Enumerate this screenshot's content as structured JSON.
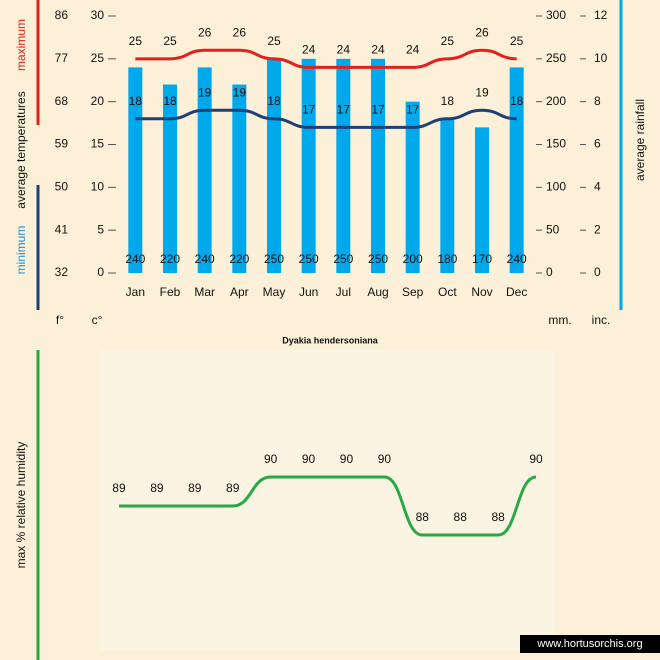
{
  "chart_data": [
    {
      "type": "combo",
      "title": "Dyakia hendersoniana",
      "ylabel_max": "maximum",
      "ylabel": "average temperatures",
      "ylabel_min": "minimum",
      "y2label": "average rainfall",
      "yunit_f": "f°",
      "yunit_c": "c°",
      "y2unit": "mm.",
      "y3unit": "inc.",
      "categories": [
        "Jan",
        "Feb",
        "Mar",
        "Apr",
        "May",
        "Jun",
        "Jul",
        "Aug",
        "Sep",
        "Oct",
        "Nov",
        "Dec"
      ],
      "ylim": [
        0,
        30
      ],
      "yticks": [
        0,
        5,
        10,
        15,
        20,
        25,
        30
      ],
      "yticks_f": [
        {
          "value": 0,
          "label": "32"
        },
        {
          "value": 5,
          "label": "41"
        },
        {
          "value": 10,
          "label": "50"
        },
        {
          "value": 15,
          "label": "59"
        },
        {
          "value": 20,
          "label": "68"
        },
        {
          "value": 25,
          "label": "77"
        },
        {
          "value": 30,
          "label": "86"
        }
      ],
      "y2lim": [
        0,
        300
      ],
      "y2ticks": [
        0,
        50,
        100,
        150,
        200,
        250,
        300
      ],
      "y3ticks": [
        {
          "value": 0,
          "label": "0"
        },
        {
          "value": 50,
          "label": "2"
        },
        {
          "value": 100,
          "label": "4"
        },
        {
          "value": 150,
          "label": "6"
        },
        {
          "value": 200,
          "label": "8"
        },
        {
          "value": 250,
          "label": "10"
        },
        {
          "value": 300,
          "label": "12"
        }
      ],
      "series": [
        {
          "name": "average rainfall",
          "kind": "bar",
          "axis": "y2",
          "color": "#00a8ec",
          "values": [
            240,
            220,
            240,
            220,
            250,
            250,
            250,
            250,
            200,
            180,
            170,
            240
          ]
        },
        {
          "name": "maximum",
          "kind": "line",
          "color": "#e3201b",
          "values": [
            25,
            25,
            26,
            26,
            25,
            24,
            24,
            24,
            24,
            25,
            26,
            25
          ]
        },
        {
          "name": "minimum",
          "kind": "line",
          "color": "#1f3f78",
          "values": [
            18,
            18,
            19,
            19,
            18,
            17,
            17,
            17,
            17,
            18,
            19,
            18
          ]
        }
      ]
    },
    {
      "type": "line",
      "ylabel": "max % relative humidity",
      "color": "#2aa845",
      "values": [
        89,
        89,
        89,
        89,
        90,
        90,
        90,
        90,
        88,
        88,
        88,
        90
      ],
      "watermark": "www.hortusorchis.org"
    }
  ]
}
